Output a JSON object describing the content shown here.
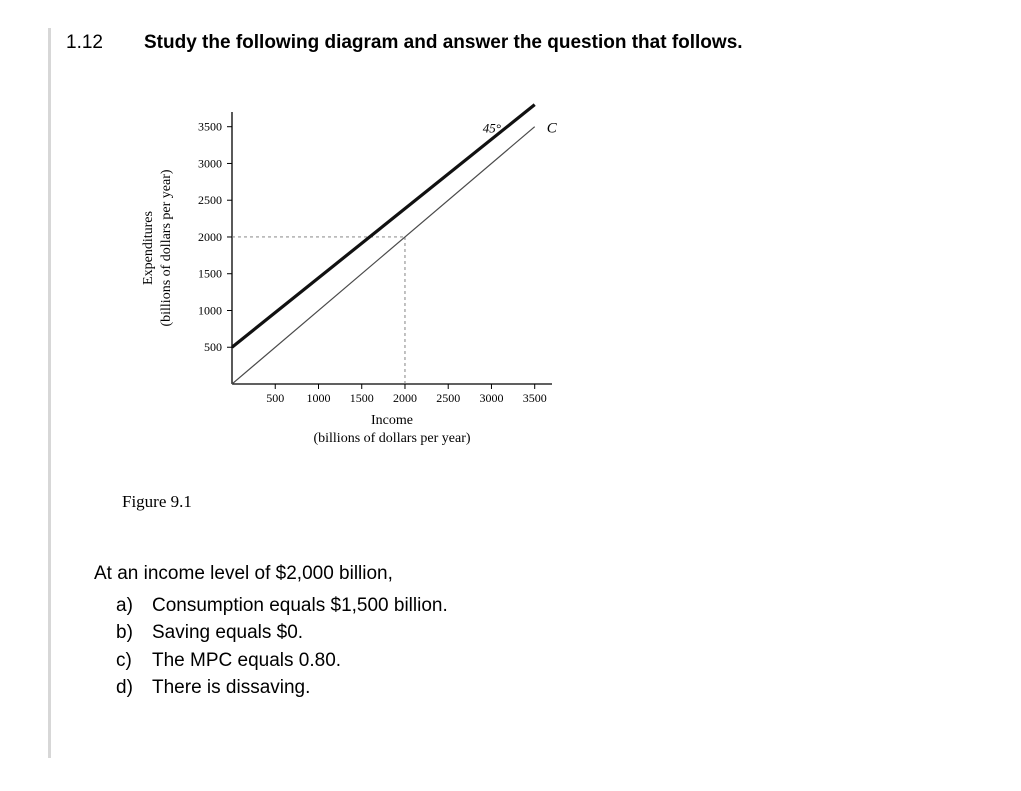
{
  "question": {
    "number": "1.12",
    "title": "Study the following diagram and answer the question that follows."
  },
  "figure": {
    "type": "line",
    "caption": "Figure 9.1",
    "xlabel_line1": "Income",
    "xlabel_line2": "(billions of dollars per year)",
    "ylabel_line1": "Expenditures",
    "ylabel_line2": "(billions of dollars per year)",
    "x_ticks": [
      500,
      1000,
      1500,
      2000,
      2500,
      3000,
      3500
    ],
    "y_ticks": [
      500,
      1000,
      1500,
      2000,
      2500,
      3000,
      3500
    ],
    "xlim": [
      0,
      3700
    ],
    "ylim": [
      0,
      3700
    ],
    "annotations": {
      "angle_label": "45°",
      "c_label": "C"
    },
    "series": [
      {
        "name": "45deg",
        "points": [
          [
            0,
            0
          ],
          [
            3500,
            3500
          ]
        ],
        "color": "#4a4a4a",
        "width": 1.2,
        "dash": "none"
      },
      {
        "name": "C",
        "points": [
          [
            0,
            500
          ],
          [
            3500,
            3800
          ]
        ],
        "color": "#111111",
        "width": 3.2,
        "dash": "none"
      }
    ],
    "guides": [
      {
        "type": "h",
        "from_x": 0,
        "to_x": 2000,
        "y": 2000,
        "color": "#777777",
        "dash": "3,3"
      },
      {
        "type": "v",
        "x": 2000,
        "from_y": 0,
        "to_y": 2000,
        "color": "#777777",
        "dash": "3,3"
      }
    ],
    "axis_color": "#000000",
    "tick_font_size": 12,
    "label_font_size": 14,
    "background_color": "#ffffff"
  },
  "prompt": "At an income level of $2,000 billion,",
  "options": [
    {
      "letter": "a)",
      "text": "Consumption equals $1,500 billion."
    },
    {
      "letter": "b)",
      "text": "Saving equals $0."
    },
    {
      "letter": "c)",
      "text": "The MPC equals 0.80."
    },
    {
      "letter": "d)",
      "text": "There is dissaving."
    }
  ]
}
